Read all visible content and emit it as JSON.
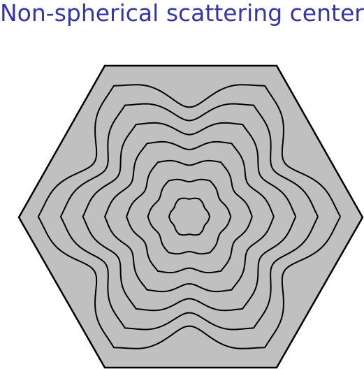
{
  "header": {
    "title": "Non-spherical scattering center"
  },
  "diagram": {
    "cell_shape": "hexagon",
    "contour_count": 7,
    "colors": {
      "title": "#3535a6",
      "cell_fill": "#c0c0c0",
      "stroke": "#000000"
    }
  }
}
